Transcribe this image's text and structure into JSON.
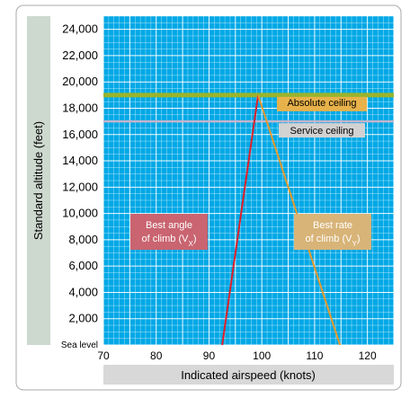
{
  "chart_data": {
    "type": "line",
    "xlabel": "Indicated airspeed (knots)",
    "ylabel": "Standard altitude (feet)",
    "xlim": [
      70,
      125
    ],
    "ylim": [
      0,
      25000
    ],
    "x_ticks": [
      70,
      80,
      90,
      100,
      110,
      120
    ],
    "y_ticks": [
      {
        "value": 0,
        "label": "Sea level"
      },
      {
        "value": 2000,
        "label": "2,000"
      },
      {
        "value": 4000,
        "label": "4,000"
      },
      {
        "value": 6000,
        "label": "6,000"
      },
      {
        "value": 8000,
        "label": "8,000"
      },
      {
        "value": 10000,
        "label": "10,000"
      },
      {
        "value": 12000,
        "label": "12,000"
      },
      {
        "value": 14000,
        "label": "14,000"
      },
      {
        "value": 16000,
        "label": "16,000"
      },
      {
        "value": 18000,
        "label": "18,000"
      },
      {
        "value": 20000,
        "label": "20,000"
      },
      {
        "value": 22000,
        "label": "22,000"
      },
      {
        "value": 24000,
        "label": "24,000"
      }
    ],
    "grid": true,
    "series": [
      {
        "key": "vx",
        "color": "#e0202a",
        "points": [
          [
            92.5,
            0
          ],
          [
            99.3,
            19000
          ]
        ]
      },
      {
        "key": "vy",
        "color": "#e69a2e",
        "points": [
          [
            99.3,
            19000
          ],
          [
            114.8,
            0
          ]
        ]
      }
    ],
    "reference_lines": [
      {
        "key": "absolute",
        "y": 19000,
        "label": "Absolute ceiling",
        "line_color": "#9ab42c",
        "label_bg": "#e8b24a"
      },
      {
        "key": "service",
        "y": 17000,
        "label": "Service ceiling",
        "line_color": "#c4b4cc",
        "label_bg": "#d2d2d2"
      }
    ],
    "annotations": [
      {
        "key": "vx-box",
        "lines": [
          "Best angle",
          "of climb (V",
          "X",
          ")"
        ],
        "bg": "#c96470"
      },
      {
        "key": "vy-box",
        "lines": [
          "Best rate",
          "of climb (V",
          "Y",
          ")"
        ],
        "bg": "#d8b478"
      }
    ],
    "colors": {
      "plot_bg": "#00a8e6",
      "grid_line": "#ffffff",
      "axis_label_bg": "#cdd8cf",
      "xlabel_bg": "#d8d8d8",
      "frame": "#999999"
    }
  }
}
